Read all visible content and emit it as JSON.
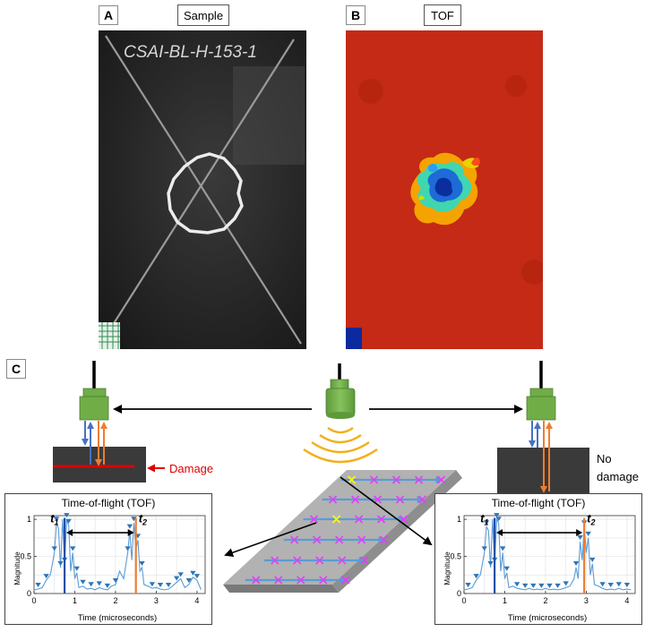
{
  "panels": {
    "a": {
      "letter": "A",
      "title": "Sample",
      "specimen_label": "CSAI-BL-H-153-1"
    },
    "b": {
      "letter": "B",
      "title": "TOF"
    },
    "c": {
      "letter": "C"
    }
  },
  "labels": {
    "damage": "Damage",
    "no_damage_line1": "No",
    "no_damage_line2": "damage"
  },
  "colors": {
    "tof_background": "#c42a16",
    "transducer": "#70ad47",
    "damage_line": "#e00000",
    "incident_wave": "#4472c4",
    "reflected_wave": "#ed7d31",
    "plate": "#b2b2b2",
    "scan_arrow": "#5b9bd5",
    "scan_mark": "#e040fb",
    "selected_mark": "#ffff00",
    "signal": "#5b9bd5",
    "peak_marker": "#2e75b6",
    "t1_line": "#1f4fa8",
    "t2_line": "#ed7d31"
  },
  "chart_data": [
    {
      "type": "line",
      "title": "Time-of-flight (TOF)",
      "xlabel": "Time (microseconds)",
      "ylabel": "Magnitude",
      "xlim": [
        0,
        4.2
      ],
      "ylim": [
        0,
        1.05
      ],
      "xticks": [
        "0",
        "1",
        "2",
        "3",
        "4"
      ],
      "yticks": [
        "0",
        "0.5",
        "1"
      ],
      "grid": true,
      "annotations": [
        {
          "text": "t",
          "subscript": "1",
          "x": 0.75
        },
        {
          "text": "t",
          "subscript": "2",
          "x": 2.5
        }
      ],
      "x": [
        0,
        0.1,
        0.2,
        0.3,
        0.4,
        0.5,
        0.55,
        0.6,
        0.65,
        0.7,
        0.75,
        0.8,
        0.85,
        0.9,
        0.95,
        1.0,
        1.05,
        1.1,
        1.2,
        1.3,
        1.4,
        1.5,
        1.6,
        1.7,
        1.8,
        1.9,
        2.0,
        2.1,
        2.2,
        2.3,
        2.35,
        2.4,
        2.45,
        2.5,
        2.55,
        2.6,
        2.65,
        2.7,
        2.8,
        2.9,
        3.0,
        3.1,
        3.2,
        3.3,
        3.4,
        3.5,
        3.6,
        3.7,
        3.8,
        3.9,
        4.0,
        4.1
      ],
      "values": [
        0.05,
        0.06,
        0.08,
        0.18,
        0.25,
        0.55,
        0.95,
        0.88,
        0.35,
        1.0,
        0.4,
        1.0,
        0.92,
        0.3,
        0.55,
        0.2,
        0.28,
        0.08,
        0.1,
        0.06,
        0.07,
        0.05,
        0.08,
        0.06,
        0.05,
        0.1,
        0.12,
        0.3,
        0.2,
        0.55,
        0.85,
        0.45,
        0.95,
        0.6,
        0.72,
        0.3,
        0.35,
        0.12,
        0.1,
        0.07,
        0.08,
        0.06,
        0.05,
        0.06,
        0.1,
        0.15,
        0.2,
        0.08,
        0.12,
        0.22,
        0.18,
        0.05
      ],
      "markers_x": [
        0.1,
        0.3,
        0.5,
        0.55,
        0.65,
        0.75,
        0.8,
        0.85,
        0.95,
        1.05,
        1.2,
        1.4,
        1.6,
        1.8,
        2.0,
        2.3,
        2.35,
        2.45,
        2.55,
        2.65,
        2.9,
        3.1,
        3.3,
        3.5,
        3.6,
        3.8,
        3.9,
        4.0
      ],
      "vlines": [
        {
          "x": 0.75,
          "role": "t1"
        },
        {
          "x": 2.5,
          "role": "t2"
        }
      ],
      "double_arrow": {
        "x_from": 0.75,
        "x_to": 2.5,
        "y": 0.82
      }
    },
    {
      "type": "line",
      "title": "Time-of-flight (TOF)",
      "xlabel": "Time (microseconds)",
      "ylabel": "Magnitude",
      "xlim": [
        0,
        4.2
      ],
      "ylim": [
        0,
        1.05
      ],
      "xticks": [
        "0",
        "1",
        "2",
        "3",
        "4"
      ],
      "yticks": [
        "0",
        "0.5",
        "1"
      ],
      "grid": true,
      "annotations": [
        {
          "text": "t",
          "subscript": "1",
          "x": 0.75
        },
        {
          "text": "t",
          "subscript": "2",
          "x": 2.95
        }
      ],
      "x": [
        0,
        0.1,
        0.2,
        0.3,
        0.4,
        0.5,
        0.55,
        0.6,
        0.65,
        0.7,
        0.75,
        0.8,
        0.85,
        0.9,
        0.95,
        1.0,
        1.05,
        1.1,
        1.2,
        1.3,
        1.4,
        1.5,
        1.6,
        1.7,
        1.8,
        1.9,
        2.0,
        2.1,
        2.2,
        2.3,
        2.4,
        2.5,
        2.6,
        2.7,
        2.75,
        2.8,
        2.85,
        2.9,
        2.95,
        3.0,
        3.05,
        3.1,
        3.15,
        3.2,
        3.3,
        3.4,
        3.5,
        3.6,
        3.7,
        3.8,
        3.9,
        4.0,
        4.1
      ],
      "values": [
        0.05,
        0.06,
        0.08,
        0.18,
        0.25,
        0.55,
        0.9,
        0.85,
        0.35,
        1.0,
        0.4,
        1.0,
        0.95,
        0.3,
        0.55,
        0.2,
        0.28,
        0.08,
        0.1,
        0.07,
        0.06,
        0.05,
        0.07,
        0.05,
        0.06,
        0.05,
        0.07,
        0.05,
        0.06,
        0.05,
        0.06,
        0.08,
        0.1,
        0.2,
        0.35,
        0.2,
        0.7,
        0.45,
        0.9,
        0.55,
        0.75,
        0.25,
        0.4,
        0.12,
        0.1,
        0.07,
        0.05,
        0.06,
        0.05,
        0.07,
        0.05,
        0.06,
        0.05
      ],
      "markers_x": [
        0.1,
        0.3,
        0.5,
        0.55,
        0.65,
        0.75,
        0.8,
        0.85,
        0.95,
        1.05,
        1.3,
        1.5,
        1.7,
        1.9,
        2.1,
        2.3,
        2.5,
        2.75,
        2.85,
        2.95,
        3.05,
        3.15,
        3.4,
        3.6,
        3.8,
        4.0
      ],
      "vlines": [
        {
          "x": 0.75,
          "role": "t1"
        },
        {
          "x": 2.95,
          "role": "t2"
        }
      ],
      "double_arrow": {
        "x_from": 0.75,
        "x_to": 2.95,
        "y": 0.82
      }
    }
  ]
}
